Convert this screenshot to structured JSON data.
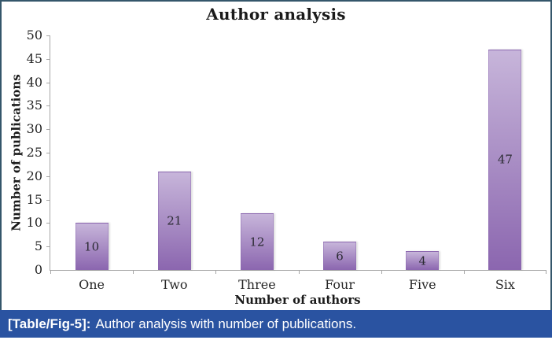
{
  "window": {
    "border_color": "#35576b",
    "background": "#ffffff"
  },
  "chart_data": {
    "type": "bar",
    "title": "Author analysis",
    "categories": [
      "One",
      "Two",
      "Three",
      "Four",
      "Five",
      "Six"
    ],
    "values": [
      10,
      21,
      12,
      6,
      4,
      47
    ],
    "xlabel": "Number of authors",
    "ylabel": "Number of publications",
    "ylim": [
      0,
      50
    ],
    "ytick_step": 5,
    "grid": false,
    "legend": false,
    "data_labels": "center",
    "bar_color_top": "#c7b5da",
    "bar_color_bottom": "#8b66af",
    "axis_color": "#a6a6a6",
    "tick_label_color": "#262626"
  },
  "caption": {
    "prefix": "[Table/Fig-5]:",
    "text": "Author analysis with number of publications.",
    "background": "#2a53a1",
    "text_color": "#ffffff"
  }
}
